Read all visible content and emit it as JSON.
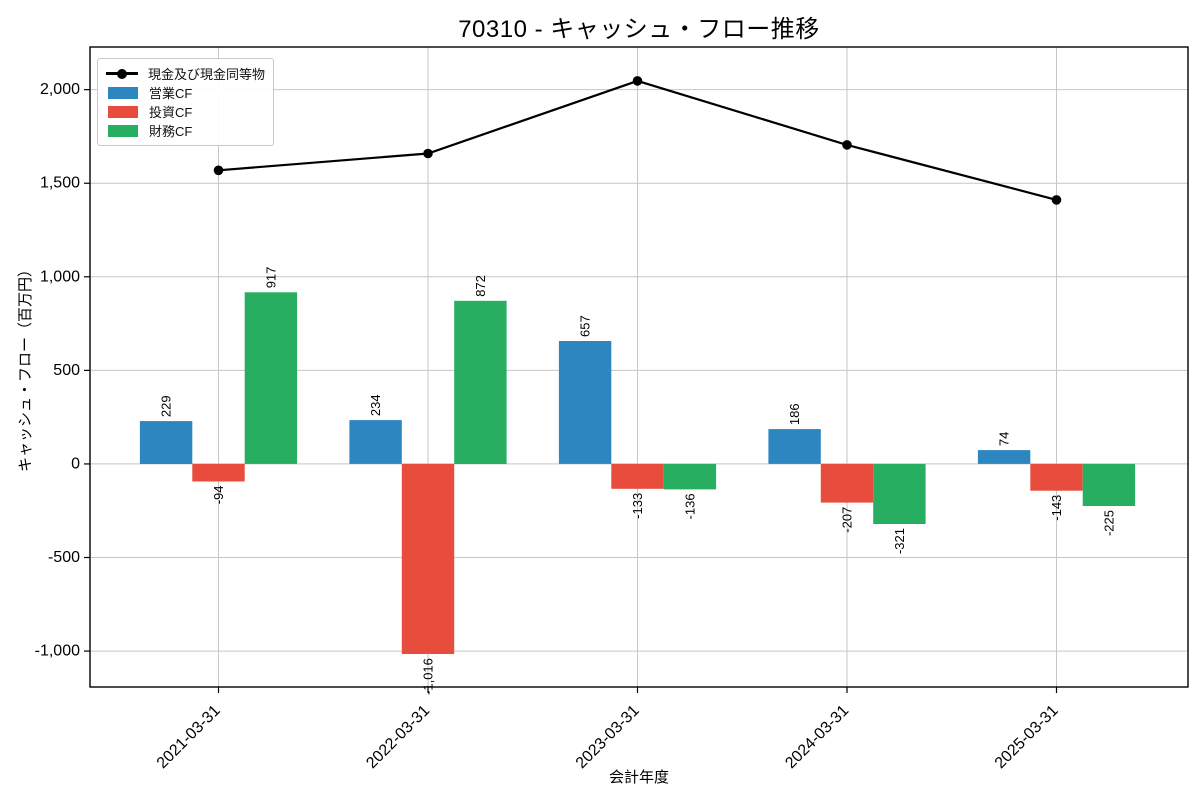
{
  "chart_data": {
    "type": "bar",
    "subtype": "grouped-bars-with-line",
    "title": "70310 - キャッシュ・フロー推移",
    "xlabel": "会計年度",
    "ylabel": "キャッシュ・フロー（百万円）",
    "categories": [
      "2021-03-31",
      "2022-03-31",
      "2023-03-31",
      "2024-03-31",
      "2025-03-31"
    ],
    "bar_series": [
      {
        "key": "operating-cf",
        "name": "営業CF",
        "color": "#2e86c1",
        "values": [
          229,
          234,
          657,
          186,
          74
        ]
      },
      {
        "key": "investing-cf",
        "name": "投資CF",
        "color": "#e74c3c",
        "values": [
          -94,
          -1016,
          -133,
          -207,
          -143
        ]
      },
      {
        "key": "financing-cf",
        "name": "財務CF",
        "color": "#27ae60",
        "values": [
          917,
          872,
          -136,
          -321,
          -225
        ]
      }
    ],
    "line_series": {
      "key": "cash-equivalents",
      "name": "現金及び現金同等物",
      "color": "#000000",
      "values": [
        1569,
        1659,
        2047,
        1705,
        1411
      ]
    },
    "bar_value_labels": true,
    "yticks": [
      -1000,
      -500,
      0,
      500,
      1000,
      1500,
      2000
    ],
    "ylim": [
      -1192,
      2228
    ],
    "grid": true,
    "legend_position": "upper left",
    "grid_color": "#c6c6c6",
    "axis_color": "#000000"
  }
}
